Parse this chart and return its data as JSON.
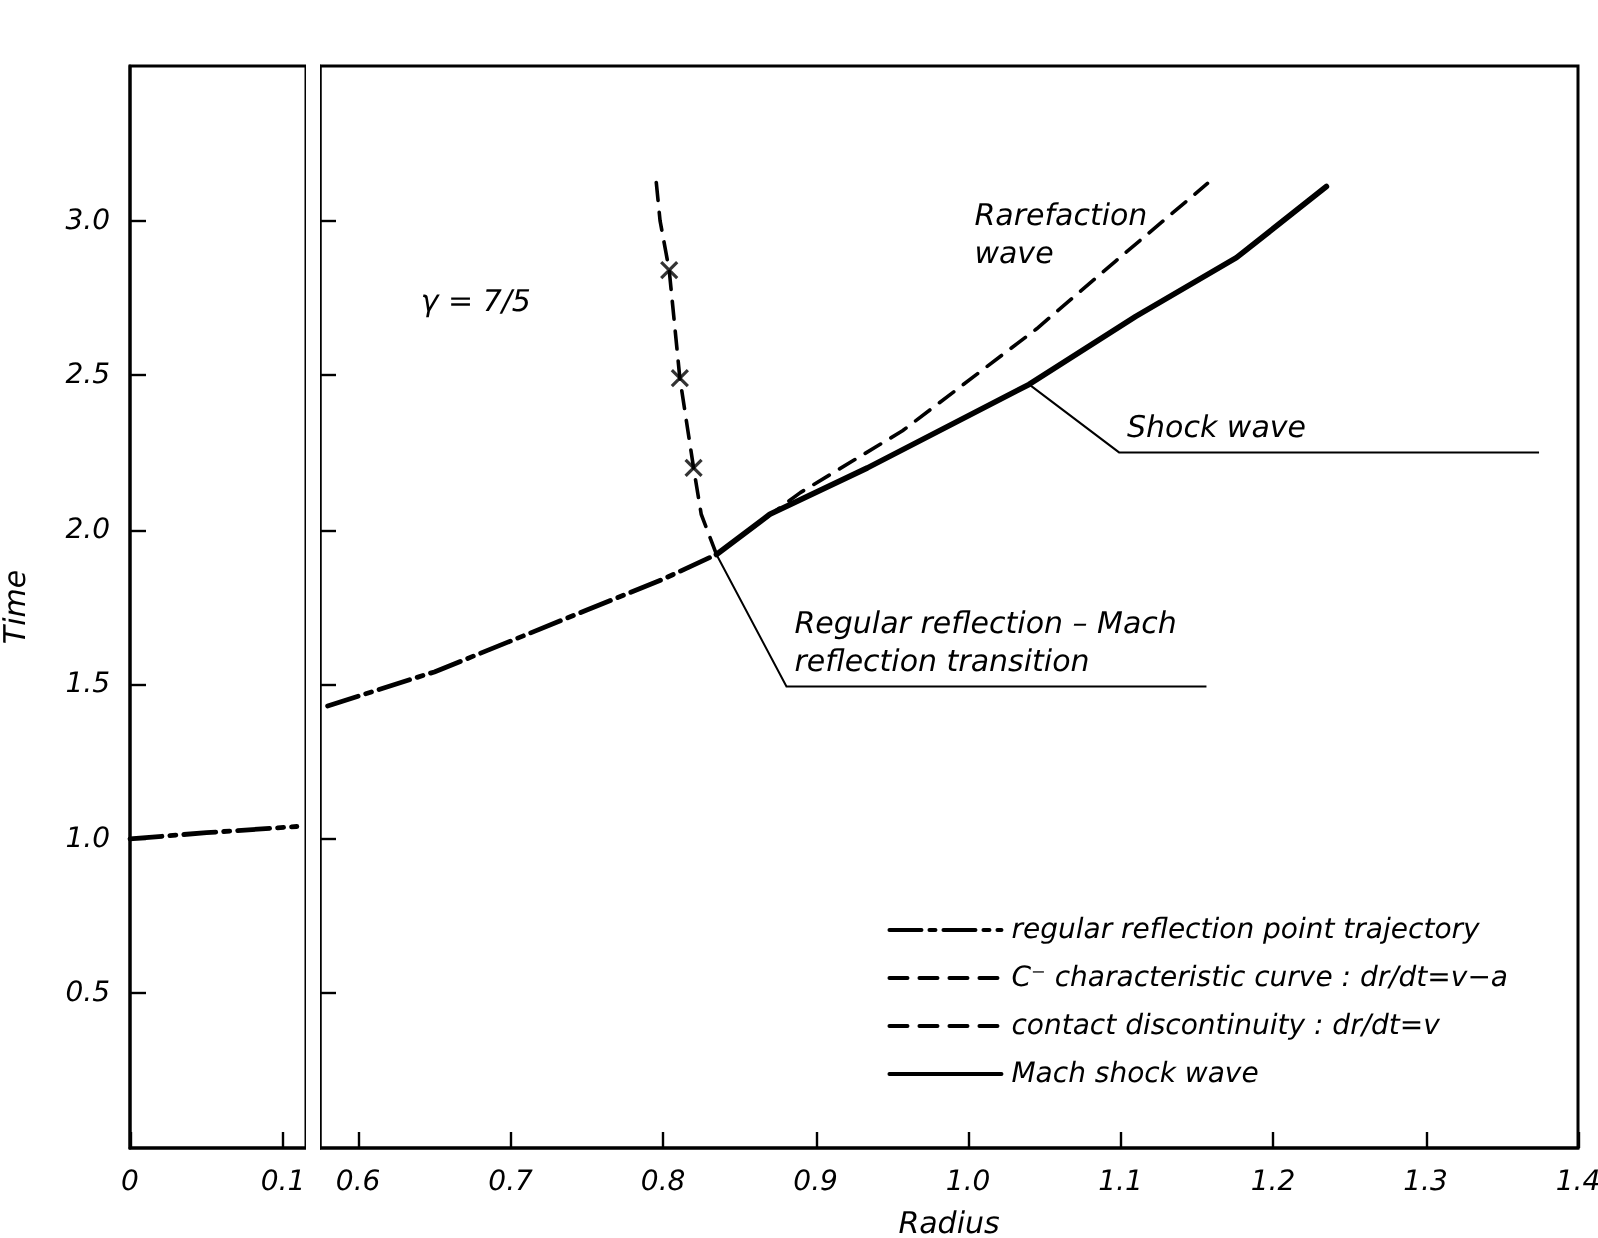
{
  "chart_data": [
    {
      "type": "line",
      "ylabel": "Time",
      "xlim": [
        0,
        0.115
      ],
      "ylim": [
        0,
        3.5
      ],
      "xticks": [
        0,
        0.1
      ],
      "yticks": [
        0.5,
        {
          "value": 1,
          "label": "1.0"
        },
        1.5,
        {
          "value": 2,
          "label": "2.0"
        },
        2.5,
        {
          "value": 3,
          "label": "3.0"
        }
      ],
      "grid": false,
      "series": [
        {
          "color": "#000000",
          "line_style": "dashdot",
          "x": [
            0,
            0.05,
            0.109
          ],
          "values": [
            1.0,
            1.02,
            1.04
          ]
        }
      ]
    },
    {
      "type": "line",
      "xlabel": "Radius",
      "xlim": [
        0.575,
        1.4
      ],
      "ylim": [
        0,
        3.5
      ],
      "xticks": [
        0.6,
        0.7,
        0.8,
        0.9,
        {
          "value": 1,
          "label": "1.0"
        },
        1.1,
        1.2,
        1.3,
        1.4
      ],
      "yticks": [
        0.5,
        1,
        1.5,
        2,
        2.5,
        3
      ],
      "tick_labels": "x",
      "grid": false,
      "legend": "bottom right",
      "series": [
        {
          "name": "regular reflection point trajectory",
          "color": "#000000",
          "line_style": "dashdot",
          "x": [
            0.58,
            0.65,
            0.7,
            0.75,
            0.8,
            0.835
          ],
          "values": [
            1.43,
            1.54,
            1.64,
            1.74,
            1.84,
            1.92
          ]
        },
        {
          "name": "C⁻ characteristic curve : dr/dt=v−a",
          "color": "#000000",
          "line_style": "dashed",
          "x": [
            0.835,
            0.825,
            0.82,
            0.811,
            0.804,
            0.798,
            0.795
          ],
          "values": [
            1.92,
            2.05,
            2.2,
            2.49,
            2.84,
            3.0,
            3.15
          ]
        },
        {
          "type": "scatter",
          "color": "#000000",
          "marker": "cross",
          "x": [
            0.82,
            0.811,
            0.804
          ],
          "values": [
            2.2,
            2.49,
            2.84
          ]
        },
        {
          "name": "contact discontinuity : dr/dt=v",
          "color": "#000000",
          "line_style": "dashed",
          "x": [
            0.835,
            0.89,
            0.957,
            1.045,
            1.097,
            1.157
          ],
          "values": [
            1.92,
            2.12,
            2.32,
            2.65,
            2.87,
            3.12
          ]
        },
        {
          "name": "Mach shock wave",
          "color": "#000000",
          "line_style": "solid",
          "x": [
            0.835,
            0.87,
            0.934,
            1.04,
            1.11,
            1.176,
            1.235
          ],
          "values": [
            1.92,
            2.05,
            2.2,
            2.47,
            2.69,
            2.88,
            3.11
          ]
        }
      ],
      "annotations": [
        "γ = 7/5",
        "Rarefaction\nwave",
        {
          "text": "Shock wave",
          "x": 1.04,
          "y": 2.47
        },
        {
          "text": "Regular reflection – Mach\nreflection transition",
          "x": 0.835,
          "y": 1.92
        }
      ]
    }
  ]
}
